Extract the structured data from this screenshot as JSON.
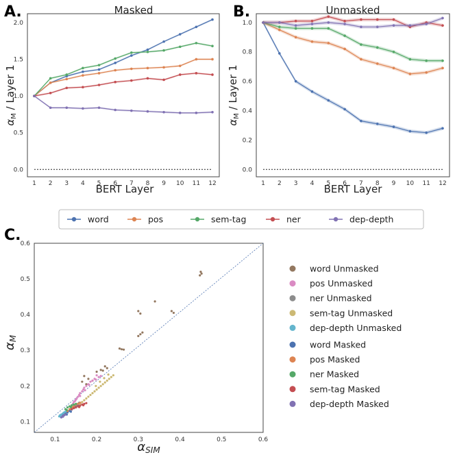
{
  "colors": {
    "word": "#4c72b0",
    "pos": "#dd8452",
    "sem-tag": "#55a868",
    "ner": "#c44e52",
    "dep-depth": "#8172b3",
    "word_u": "#937860",
    "pos_u": "#da8bc3",
    "ner_u": "#8c8c8c",
    "semtag_u": "#ccb974",
    "depdepth_u": "#64b5cd"
  },
  "chart_data": [
    {
      "id": "A",
      "panel_label": "A.",
      "type": "line",
      "title": "Masked",
      "xlabel": "BERT Layer",
      "ylabel": "αM / Layer 1",
      "x": [
        1,
        2,
        3,
        4,
        5,
        6,
        7,
        8,
        9,
        10,
        11,
        12
      ],
      "xticks": [
        "1",
        "2",
        "3",
        "4",
        "5",
        "6",
        "7",
        "8",
        "9",
        "10",
        "11",
        "12"
      ],
      "ylim": [
        -0.1,
        2.12
      ],
      "yticks": [
        "0.0",
        "0.5",
        "1.0",
        "1.5",
        "2.0"
      ],
      "ytick_values": [
        0,
        0.5,
        1.0,
        1.5,
        2.0
      ],
      "baseline": 0.0,
      "series": [
        {
          "name": "word",
          "values": [
            1.0,
            1.18,
            1.27,
            1.33,
            1.36,
            1.45,
            1.55,
            1.63,
            1.74,
            1.84,
            1.94,
            2.04
          ]
        },
        {
          "name": "pos",
          "values": [
            1.0,
            1.18,
            1.23,
            1.28,
            1.31,
            1.35,
            1.37,
            1.38,
            1.39,
            1.41,
            1.5,
            1.5
          ]
        },
        {
          "name": "sem-tag",
          "values": [
            1.0,
            1.24,
            1.29,
            1.38,
            1.42,
            1.51,
            1.59,
            1.6,
            1.62,
            1.67,
            1.72,
            1.68
          ]
        },
        {
          "name": "ner",
          "values": [
            1.0,
            1.04,
            1.11,
            1.12,
            1.15,
            1.19,
            1.21,
            1.24,
            1.22,
            1.29,
            1.31,
            1.29
          ]
        },
        {
          "name": "dep-depth",
          "values": [
            1.0,
            0.84,
            0.84,
            0.83,
            0.84,
            0.81,
            0.8,
            0.79,
            0.78,
            0.77,
            0.77,
            0.78
          ]
        }
      ]
    },
    {
      "id": "B",
      "panel_label": "B.",
      "type": "line",
      "title": "Unmasked",
      "xlabel": "BERT Layer",
      "ylabel": "αM / Layer 1",
      "x": [
        1,
        2,
        3,
        4,
        5,
        6,
        7,
        8,
        9,
        10,
        11,
        12
      ],
      "xticks": [
        "1",
        "2",
        "3",
        "4",
        "5",
        "6",
        "7",
        "8",
        "9",
        "10",
        "11",
        "12"
      ],
      "ylim": [
        -0.05,
        1.06
      ],
      "yticks": [
        "0.0",
        "0.2",
        "0.4",
        "0.6",
        "0.8",
        "1.0"
      ],
      "ytick_values": [
        0,
        0.2,
        0.4,
        0.6,
        0.8,
        1.0
      ],
      "baseline": 0.0,
      "series": [
        {
          "name": "word",
          "values": [
            1.0,
            0.79,
            0.6,
            0.53,
            0.47,
            0.41,
            0.33,
            0.31,
            0.29,
            0.26,
            0.25,
            0.28
          ]
        },
        {
          "name": "pos",
          "values": [
            1.0,
            0.95,
            0.9,
            0.87,
            0.86,
            0.82,
            0.75,
            0.72,
            0.69,
            0.65,
            0.66,
            0.69
          ]
        },
        {
          "name": "sem-tag",
          "values": [
            1.0,
            0.97,
            0.96,
            0.96,
            0.96,
            0.91,
            0.85,
            0.83,
            0.8,
            0.75,
            0.74,
            0.74
          ]
        },
        {
          "name": "ner",
          "values": [
            1.0,
            1.0,
            1.01,
            1.01,
            1.04,
            1.01,
            1.02,
            1.02,
            1.02,
            0.97,
            1.0,
            0.98
          ]
        },
        {
          "name": "dep-depth",
          "values": [
            1.0,
            1.0,
            0.98,
            0.99,
            1.0,
            0.99,
            0.97,
            0.97,
            0.98,
            0.98,
            0.99,
            1.03
          ]
        }
      ]
    },
    {
      "id": "C",
      "panel_label": "C.",
      "type": "scatter",
      "xlabel": "αSIM",
      "ylabel": "αM",
      "xlim": [
        0.05,
        0.6
      ],
      "ylim": [
        0.07,
        0.6
      ],
      "xticks": [
        "0.1",
        "0.2",
        "0.3",
        "0.4",
        "0.5",
        "0.6"
      ],
      "xtick_values": [
        0.1,
        0.2,
        0.3,
        0.4,
        0.5,
        0.6
      ],
      "yticks": [
        "0.1",
        "0.2",
        "0.3",
        "0.4",
        "0.5",
        "0.6"
      ],
      "ytick_values": [
        0.1,
        0.2,
        0.3,
        0.4,
        0.5,
        0.6
      ],
      "diagonal": true,
      "series": [
        {
          "name": "word Unmasked",
          "color_key": "word_u",
          "points": [
            [
              0.45,
              0.52
            ],
            [
              0.452,
              0.515
            ],
            [
              0.448,
              0.51
            ],
            [
              0.34,
              0.437
            ],
            [
              0.38,
              0.41
            ],
            [
              0.385,
              0.405
            ],
            [
              0.3,
              0.41
            ],
            [
              0.305,
              0.403
            ],
            [
              0.31,
              0.35
            ],
            [
              0.305,
              0.345
            ],
            [
              0.3,
              0.34
            ],
            [
              0.255,
              0.305
            ],
            [
              0.26,
              0.303
            ],
            [
              0.265,
              0.302
            ],
            [
              0.22,
              0.255
            ],
            [
              0.225,
              0.25
            ],
            [
              0.21,
              0.245
            ],
            [
              0.215,
              0.243
            ],
            [
              0.2,
              0.24
            ],
            [
              0.17,
              0.228
            ],
            [
              0.18,
              0.22
            ],
            [
              0.19,
              0.215
            ],
            [
              0.165,
              0.212
            ],
            [
              0.175,
              0.205
            ]
          ]
        },
        {
          "name": "pos Unmasked",
          "color_key": "pos_u",
          "points": [
            [
              0.2,
              0.23
            ],
            [
              0.205,
              0.225
            ],
            [
              0.21,
              0.228
            ],
            [
              0.195,
              0.22
            ],
            [
              0.19,
              0.215
            ],
            [
              0.185,
              0.212
            ],
            [
              0.18,
              0.205
            ],
            [
              0.175,
              0.2
            ],
            [
              0.17,
              0.195
            ],
            [
              0.168,
              0.19
            ],
            [
              0.165,
              0.185
            ],
            [
              0.16,
              0.18
            ],
            [
              0.158,
              0.175
            ],
            [
              0.155,
              0.17
            ],
            [
              0.152,
              0.165
            ],
            [
              0.15,
              0.162
            ],
            [
              0.148,
              0.158
            ],
            [
              0.145,
              0.155
            ],
            [
              0.143,
              0.15
            ],
            [
              0.14,
              0.145
            ],
            [
              0.16,
              0.172
            ],
            [
              0.172,
              0.188
            ],
            [
              0.182,
              0.203
            ],
            [
              0.198,
              0.218
            ]
          ]
        },
        {
          "name": "ner Unmasked",
          "color_key": "ner_u",
          "points": [
            [
              0.12,
              0.12
            ],
            [
              0.125,
              0.125
            ],
            [
              0.13,
              0.128
            ],
            [
              0.135,
              0.132
            ],
            [
              0.14,
              0.138
            ],
            [
              0.145,
              0.142
            ],
            [
              0.15,
              0.146
            ],
            [
              0.155,
              0.15
            ],
            [
              0.128,
              0.13
            ],
            [
              0.138,
              0.135
            ],
            [
              0.148,
              0.145
            ],
            [
              0.158,
              0.153
            ]
          ]
        },
        {
          "name": "sem-tag Unmasked",
          "color_key": "semtag_u",
          "points": [
            [
              0.24,
              0.23
            ],
            [
              0.235,
              0.225
            ],
            [
              0.23,
              0.22
            ],
            [
              0.225,
              0.215
            ],
            [
              0.22,
              0.21
            ],
            [
              0.215,
              0.205
            ],
            [
              0.21,
              0.2
            ],
            [
              0.205,
              0.195
            ],
            [
              0.2,
              0.19
            ],
            [
              0.195,
              0.185
            ],
            [
              0.19,
              0.18
            ],
            [
              0.185,
              0.175
            ],
            [
              0.18,
              0.17
            ],
            [
              0.175,
              0.165
            ],
            [
              0.17,
              0.16
            ],
            [
              0.165,
              0.155
            ],
            [
              0.16,
              0.15
            ],
            [
              0.155,
              0.145
            ],
            [
              0.15,
              0.14
            ],
            [
              0.145,
              0.138
            ],
            [
              0.228,
              0.232
            ],
            [
              0.218,
              0.222
            ],
            [
              0.208,
              0.212
            ],
            [
              0.198,
              0.2
            ]
          ]
        },
        {
          "name": "dep-depth Unmasked",
          "color_key": "depdepth_u",
          "points": [
            [
              0.11,
              0.115
            ],
            [
              0.112,
              0.118
            ],
            [
              0.115,
              0.12
            ],
            [
              0.118,
              0.122
            ],
            [
              0.12,
              0.124
            ],
            [
              0.122,
              0.126
            ],
            [
              0.125,
              0.128
            ],
            [
              0.114,
              0.113
            ],
            [
              0.117,
              0.116
            ]
          ]
        },
        {
          "name": "word Masked",
          "color_key": "word",
          "points": [
            [
              0.12,
              0.118
            ],
            [
              0.125,
              0.122
            ],
            [
              0.13,
              0.126
            ],
            [
              0.135,
              0.13
            ],
            [
              0.14,
              0.134
            ],
            [
              0.145,
              0.138
            ],
            [
              0.15,
              0.142
            ],
            [
              0.155,
              0.146
            ],
            [
              0.128,
              0.12
            ],
            [
              0.138,
              0.128
            ]
          ]
        },
        {
          "name": "pos Masked",
          "color_key": "pos",
          "points": [
            [
              0.13,
              0.13
            ],
            [
              0.135,
              0.135
            ],
            [
              0.14,
              0.14
            ],
            [
              0.145,
              0.143
            ],
            [
              0.15,
              0.147
            ],
            [
              0.155,
              0.15
            ],
            [
              0.16,
              0.153
            ],
            [
              0.142,
              0.138
            ]
          ]
        },
        {
          "name": "ner Masked",
          "color_key": "sem-tag",
          "points": [
            [
              0.125,
              0.135
            ],
            [
              0.13,
              0.14
            ],
            [
              0.135,
              0.143
            ],
            [
              0.14,
              0.146
            ],
            [
              0.145,
              0.148
            ],
            [
              0.15,
              0.15
            ],
            [
              0.138,
              0.141
            ],
            [
              0.128,
              0.133
            ]
          ]
        },
        {
          "name": "sem-tag Masked",
          "color_key": "ner",
          "points": [
            [
              0.14,
              0.135
            ],
            [
              0.145,
              0.138
            ],
            [
              0.15,
              0.14
            ],
            [
              0.155,
              0.143
            ],
            [
              0.16,
              0.145
            ],
            [
              0.165,
              0.148
            ],
            [
              0.17,
              0.15
            ],
            [
              0.175,
              0.152
            ],
            [
              0.158,
              0.141
            ],
            [
              0.168,
              0.146
            ]
          ]
        },
        {
          "name": "dep-depth Masked",
          "color_key": "dep-depth",
          "points": [
            [
              0.115,
              0.112
            ],
            [
              0.118,
              0.115
            ],
            [
              0.12,
              0.117
            ],
            [
              0.122,
              0.118
            ],
            [
              0.125,
              0.12
            ],
            [
              0.119,
              0.114
            ]
          ]
        }
      ]
    }
  ],
  "legend_top": [
    {
      "label": "word",
      "color_key": "word"
    },
    {
      "label": "pos",
      "color_key": "pos"
    },
    {
      "label": "sem-tag",
      "color_key": "sem-tag"
    },
    {
      "label": "ner",
      "color_key": "ner"
    },
    {
      "label": "dep-depth",
      "color_key": "dep-depth"
    }
  ],
  "legend_c": [
    {
      "label": "word Unmasked",
      "color_key": "word_u"
    },
    {
      "label": "pos Unmasked",
      "color_key": "pos_u"
    },
    {
      "label": "ner Unmasked",
      "color_key": "ner_u"
    },
    {
      "label": "sem-tag Unmasked",
      "color_key": "semtag_u"
    },
    {
      "label": "dep-depth Unmasked",
      "color_key": "depdepth_u"
    },
    {
      "label": "word Masked",
      "color_key": "word"
    },
    {
      "label": "pos Masked",
      "color_key": "pos"
    },
    {
      "label": "ner Masked",
      "color_key": "sem-tag"
    },
    {
      "label": "sem-tag Masked",
      "color_key": "ner"
    },
    {
      "label": "dep-depth Masked",
      "color_key": "dep-depth"
    }
  ]
}
